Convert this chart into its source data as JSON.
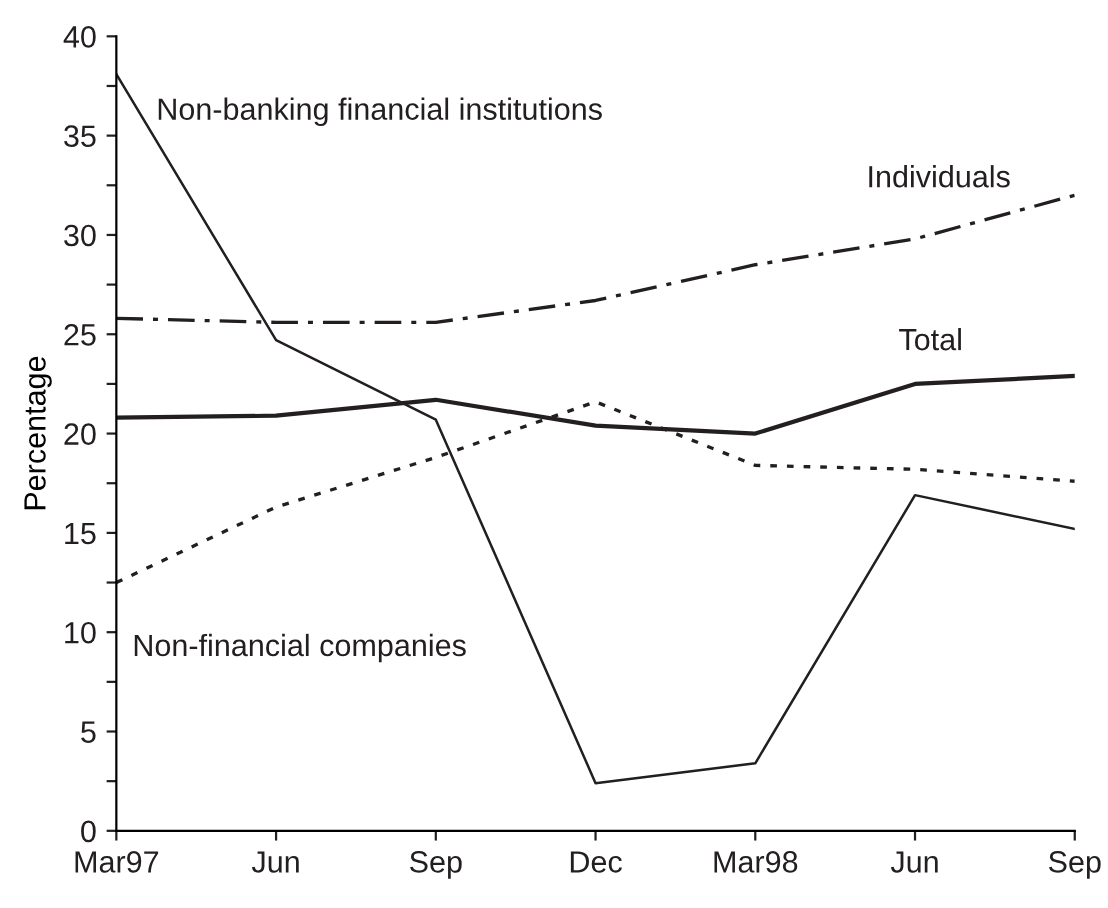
{
  "chart_data": {
    "type": "line",
    "ylabel": "Percentage",
    "categories": [
      "Mar97",
      "Jun",
      "Sep",
      "Dec",
      "Mar98",
      "Jun",
      "Sep"
    ],
    "series": [
      {
        "name": "Non-banking financial institutions",
        "color": "#231f20",
        "line_style": "solid",
        "values": [
          38.1,
          24.7,
          20.7,
          2.4,
          3.4,
          16.9,
          15.2
        ]
      },
      {
        "name": "Individuals",
        "color": "#231f20",
        "line_style": "dashdot",
        "values": [
          25.8,
          25.6,
          25.6,
          26.7,
          28.5,
          29.8,
          32.0
        ]
      },
      {
        "name": "Total",
        "color": "#231f20",
        "line_style": "solid",
        "values": [
          20.8,
          20.9,
          21.7,
          20.4,
          20.0,
          22.5,
          22.9
        ]
      },
      {
        "name": "Non-financial companies",
        "color": "#231f20",
        "line_style": "dotted",
        "values": [
          12.5,
          16.3,
          18.8,
          21.6,
          18.4,
          18.2,
          17.6
        ]
      }
    ],
    "ylim": [
      0,
      40
    ],
    "yticks": [
      0,
      {
        "value": 2.5,
        "label": null
      },
      5,
      {
        "value": 7.5,
        "label": null
      },
      10,
      {
        "value": 12.5,
        "label": null
      },
      15,
      {
        "value": 17.5,
        "label": null
      },
      20,
      {
        "value": 22.5,
        "label": null
      },
      25,
      {
        "value": 27.5,
        "label": null
      },
      30,
      {
        "value": 32.5,
        "label": null
      },
      35,
      {
        "value": 37.5,
        "label": null
      },
      40
    ],
    "grid": false,
    "legend": false,
    "marker": "none"
  }
}
